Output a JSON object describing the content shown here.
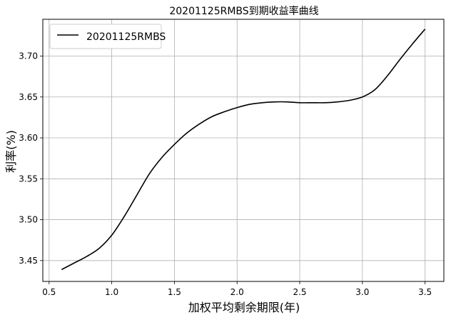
{
  "chart_data": {
    "type": "line",
    "title": "20201125RMBS到期收益率曲线",
    "xlabel": "加权平均剩余期限(年)",
    "ylabel": "利率(%)",
    "xlim": [
      0.45,
      3.65
    ],
    "ylim": [
      3.4245,
      3.745
    ],
    "xticks": [
      "0.5",
      "1.0",
      "1.5",
      "2.0",
      "2.5",
      "3.0",
      "3.5"
    ],
    "yticks": [
      "3.45",
      "3.50",
      "3.55",
      "3.60",
      "3.65",
      "3.70"
    ],
    "grid": true,
    "legend_position": "top-left",
    "series": [
      {
        "name": "20201125RMBS",
        "color": "#000000",
        "x": [
          0.6,
          0.7,
          0.8,
          0.9,
          1.0,
          1.1,
          1.2,
          1.3,
          1.4,
          1.5,
          1.6,
          1.7,
          1.8,
          1.9,
          2.0,
          2.1,
          2.2,
          2.3,
          2.4,
          2.5,
          2.6,
          2.7,
          2.8,
          2.9,
          3.0,
          3.1,
          3.2,
          3.3,
          3.4,
          3.5
        ],
        "y": [
          3.439,
          3.447,
          3.455,
          3.465,
          3.481,
          3.504,
          3.53,
          3.556,
          3.576,
          3.592,
          3.606,
          3.617,
          3.626,
          3.632,
          3.637,
          3.641,
          3.643,
          3.644,
          3.644,
          3.643,
          3.643,
          3.643,
          3.644,
          3.646,
          3.65,
          3.659,
          3.676,
          3.696,
          3.715,
          3.733
        ]
      }
    ]
  }
}
